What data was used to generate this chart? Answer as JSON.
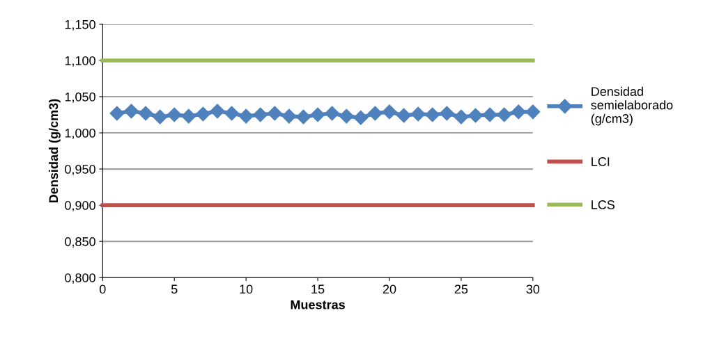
{
  "chart_data": {
    "type": "line",
    "xlabel": "Muestras",
    "ylabel": "Densidad (g/cm3)",
    "xlim": [
      0,
      30
    ],
    "xticks": [
      0,
      5,
      10,
      15,
      20,
      25,
      30
    ],
    "ylim": [
      0.8,
      1.15
    ],
    "yticks": [
      {
        "value": 0.8,
        "label": "0,800"
      },
      {
        "value": 0.85,
        "label": "0,850"
      },
      {
        "value": 0.9,
        "label": "0,900"
      },
      {
        "value": 0.95,
        "label": "0,950"
      },
      {
        "value": 1.0,
        "label": "1,000"
      },
      {
        "value": 1.05,
        "label": "1,050"
      },
      {
        "value": 1.1,
        "label": "1,100"
      },
      {
        "value": 1.15,
        "label": "1,150"
      }
    ],
    "grid": "y",
    "legend": "right",
    "series": [
      {
        "name": "Densidad semielaborado (g/cm3)",
        "color": "#4f81bd",
        "marker": "diamond",
        "x": [
          1,
          2,
          3,
          4,
          5,
          6,
          7,
          8,
          9,
          10,
          11,
          12,
          13,
          14,
          15,
          16,
          17,
          18,
          19,
          20,
          21,
          22,
          23,
          24,
          25,
          26,
          27,
          28,
          29,
          30
        ],
        "values": [
          1.027,
          1.03,
          1.027,
          1.022,
          1.025,
          1.023,
          1.026,
          1.03,
          1.027,
          1.023,
          1.025,
          1.027,
          1.023,
          1.022,
          1.025,
          1.027,
          1.023,
          1.021,
          1.027,
          1.029,
          1.024,
          1.026,
          1.025,
          1.027,
          1.022,
          1.024,
          1.025,
          1.025,
          1.029,
          1.029
        ]
      },
      {
        "name": "LCI",
        "color": "#c0504d",
        "x": [
          0,
          30
        ],
        "values": [
          0.9,
          0.9
        ]
      },
      {
        "name": "LCS",
        "color": "#9bbb59",
        "x": [
          0,
          30
        ],
        "values": [
          1.1,
          1.1
        ]
      }
    ]
  }
}
